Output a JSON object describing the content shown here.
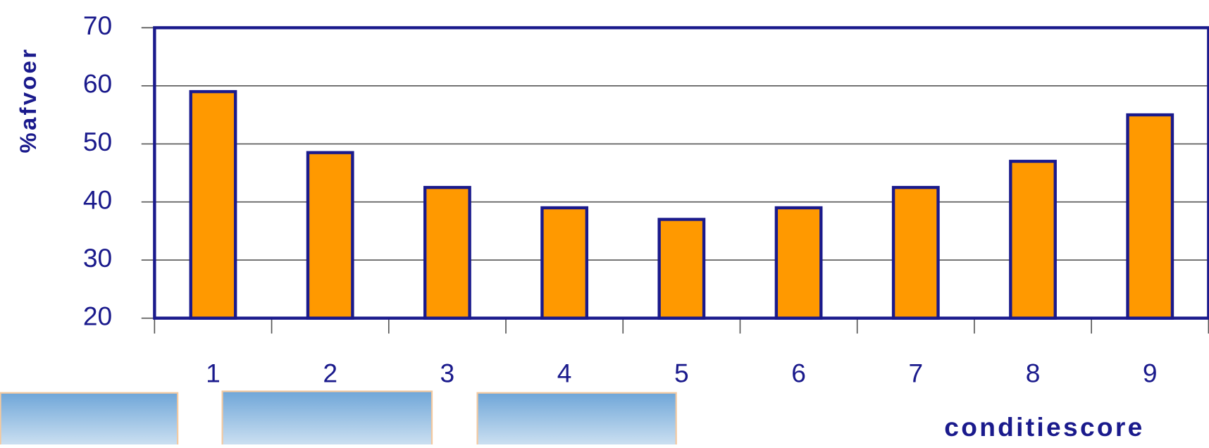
{
  "chart_data": {
    "type": "bar",
    "y_label": "%afvoer",
    "x_label": "conditiescore",
    "categories": [
      "1",
      "2",
      "3",
      "4",
      "5",
      "6",
      "7",
      "8",
      "9"
    ],
    "values": [
      59,
      48.5,
      42.5,
      39,
      37,
      39,
      42.5,
      47,
      55
    ],
    "color": "#ff9900",
    "ylim": [
      20,
      70
    ],
    "yticks": [
      20,
      30,
      40,
      50,
      60,
      70
    ],
    "grid": true
  }
}
